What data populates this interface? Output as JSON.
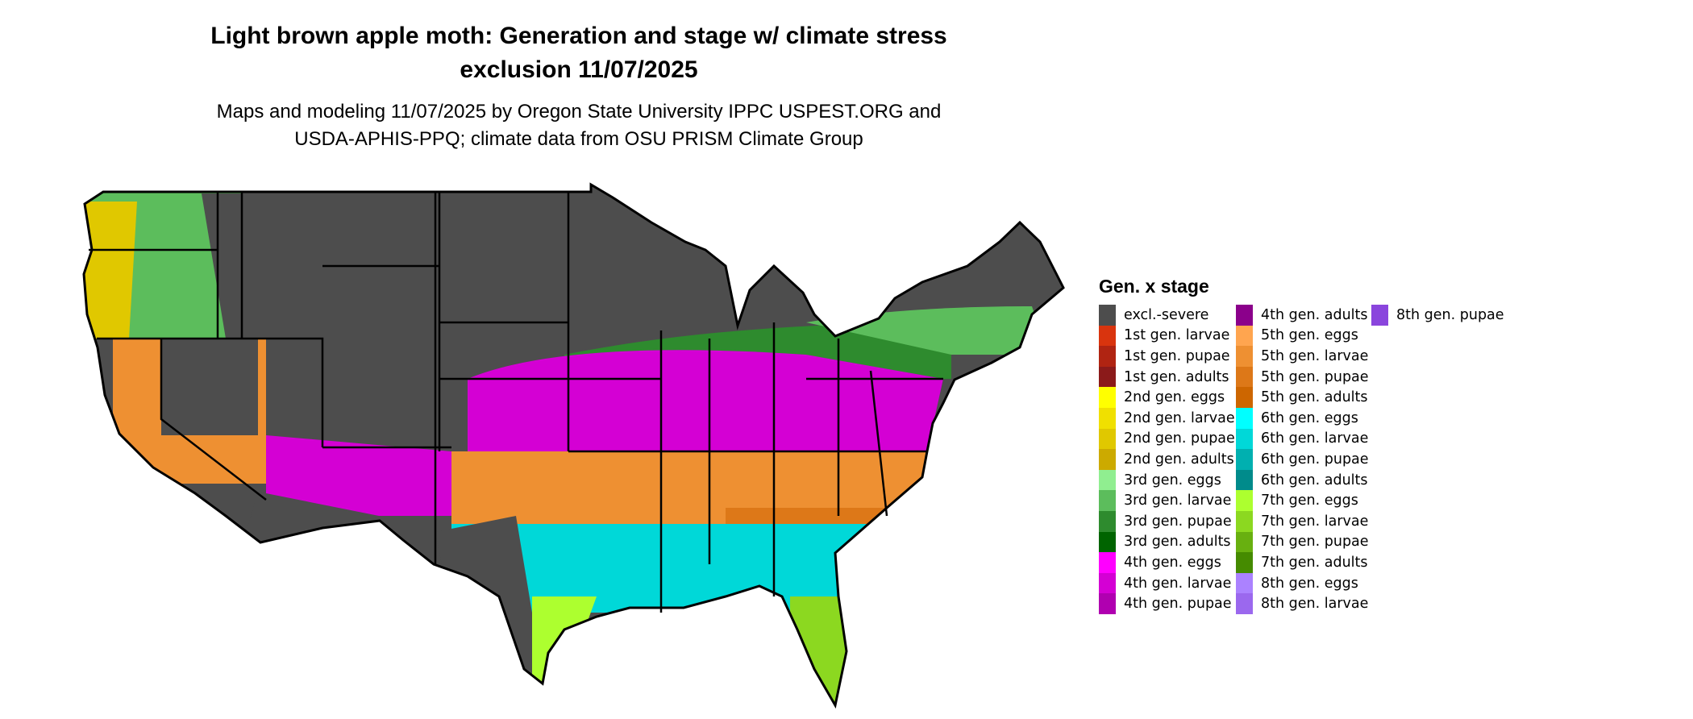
{
  "title_lines": [
    "Light brown apple moth: Generation and stage w/ climate stress",
    "exclusion 11/07/2025"
  ],
  "subtitle_lines": [
    "Maps and modeling 11/07/2025 by Oregon State University IPPC USPEST.ORG and",
    "USDA-APHIS-PPQ; climate data from OSU PRISM Climate Group"
  ],
  "legend": {
    "title": "Gen. x stage",
    "items": [
      {
        "label": "excl.-severe",
        "color": "#4d4d4d"
      },
      {
        "label": "1st gen. larvae",
        "color": "#d9340e"
      },
      {
        "label": "1st gen. pupae",
        "color": "#b02412"
      },
      {
        "label": "1st gen. adults",
        "color": "#8b1a1a"
      },
      {
        "label": "2nd gen. eggs",
        "color": "#ffff00"
      },
      {
        "label": "2nd gen. larvae",
        "color": "#f0e000"
      },
      {
        "label": "2nd gen. pupae",
        "color": "#e0c800"
      },
      {
        "label": "2nd gen. adults",
        "color": "#ccaa00"
      },
      {
        "label": "3rd gen. eggs",
        "color": "#90ee90"
      },
      {
        "label": "3rd gen. larvae",
        "color": "#5cbd5c"
      },
      {
        "label": "3rd gen. pupae",
        "color": "#2e8b2e"
      },
      {
        "label": "3rd gen. adults",
        "color": "#006400"
      },
      {
        "label": "4th gen. eggs",
        "color": "#ff00ff"
      },
      {
        "label": "4th gen. larvae",
        "color": "#d400d4"
      },
      {
        "label": "4th gen. pupae",
        "color": "#b000b0"
      },
      {
        "label": "4th gen. adults",
        "color": "#8b008b"
      },
      {
        "label": "5th gen. eggs",
        "color": "#ffa54f"
      },
      {
        "label": "5th gen. larvae",
        "color": "#ee9032"
      },
      {
        "label": "5th gen. pupae",
        "color": "#dd7818"
      },
      {
        "label": "5th gen. adults",
        "color": "#cd6600"
      },
      {
        "label": "6th gen. eggs",
        "color": "#00ffff"
      },
      {
        "label": "6th gen. larvae",
        "color": "#00d8d8"
      },
      {
        "label": "6th gen. pupae",
        "color": "#00b0b0"
      },
      {
        "label": "6th gen. adults",
        "color": "#008b8b"
      },
      {
        "label": "7th gen. eggs",
        "color": "#adff2f"
      },
      {
        "label": "7th gen. larvae",
        "color": "#8cd820"
      },
      {
        "label": "7th gen. pupae",
        "color": "#68b010"
      },
      {
        "label": "7th gen. adults",
        "color": "#458b00"
      },
      {
        "label": "8th gen. eggs",
        "color": "#ab82ff"
      },
      {
        "label": "8th gen. larvae",
        "color": "#9b68ee"
      },
      {
        "label": "8th gen. pupae",
        "color": "#8a45dd"
      }
    ]
  }
}
